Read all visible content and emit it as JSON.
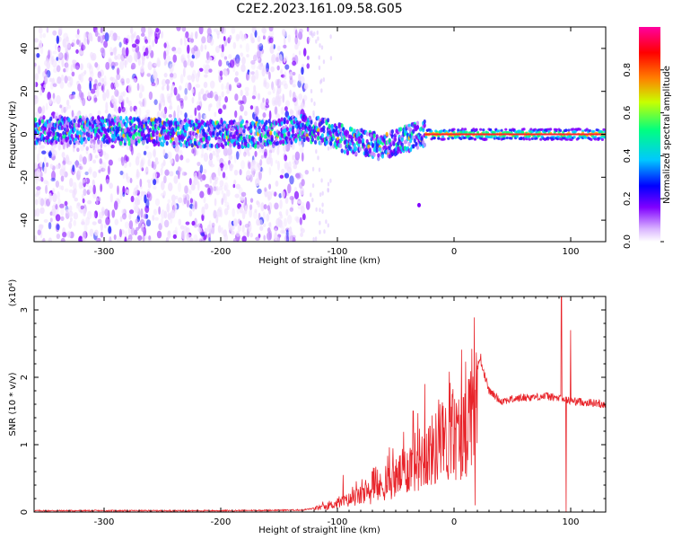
{
  "title": "C2E2.2023.161.09.58.G05",
  "chart_data": [
    {
      "type": "heatmap",
      "xlabel": "Height of straight line (km)",
      "ylabel": "Frequency (Hz)",
      "xlim": [
        -360,
        130
      ],
      "ylim": [
        -50,
        50
      ],
      "xticks": [
        -300,
        -200,
        -100,
        0,
        100
      ],
      "yticks": [
        -40,
        -20,
        0,
        20,
        40
      ],
      "colorbar": {
        "label": "Normalized spectral amplitude",
        "range": [
          0,
          1
        ],
        "ticks": [
          0,
          0.2,
          0.4,
          0.6,
          0.8
        ],
        "tick_labels": [
          "0.0",
          "0.2",
          "0.4",
          "0.6",
          "0.8"
        ],
        "colors": [
          "#ffffff",
          "#d9b3ff",
          "#8000ff",
          "#0000ff",
          "#00c8ff",
          "#00ff80",
          "#c8ff00",
          "#ff8000",
          "#ff0000",
          "#ff00a0"
        ]
      },
      "ridge": [
        {
          "x": -360,
          "f": 2
        },
        {
          "x": -300,
          "f": 2
        },
        {
          "x": -250,
          "f": 1
        },
        {
          "x": -200,
          "f": 0
        },
        {
          "x": -160,
          "f": 0
        },
        {
          "x": -130,
          "f": 3
        },
        {
          "x": -110,
          "f": 1
        },
        {
          "x": -90,
          "f": -3
        },
        {
          "x": -60,
          "f": -6
        },
        {
          "x": -45,
          "f": -3
        },
        {
          "x": -30,
          "f": 0
        },
        {
          "x": 0,
          "f": 0
        },
        {
          "x": 130,
          "f": 0
        }
      ],
      "noise_extent_km": -125,
      "grid": false
    },
    {
      "type": "line",
      "xlabel": "Height of straight line (km)",
      "ylabel": "SNR (10 * v/v)",
      "y_multiplier": "(x10⁴)",
      "xlim": [
        -360,
        130
      ],
      "ylim": [
        0,
        3.2
      ],
      "xticks": [
        -300,
        -200,
        -100,
        0,
        100
      ],
      "yticks": [
        0,
        1,
        2,
        3
      ],
      "color": "#e8242a",
      "envelope": [
        {
          "x": -360,
          "snr": 0.02
        },
        {
          "x": -200,
          "snr": 0.02
        },
        {
          "x": -130,
          "snr": 0.03
        },
        {
          "x": -110,
          "snr": 0.08
        },
        {
          "x": -90,
          "snr": 0.18
        },
        {
          "x": -70,
          "snr": 0.3
        },
        {
          "x": -50,
          "snr": 0.5
        },
        {
          "x": -30,
          "snr": 0.8
        },
        {
          "x": -10,
          "snr": 1.0
        },
        {
          "x": 10,
          "snr": 1.2
        },
        {
          "x": 22,
          "snr": 2.3
        },
        {
          "x": 30,
          "snr": 1.8
        },
        {
          "x": 40,
          "snr": 1.65
        },
        {
          "x": 60,
          "snr": 1.7
        },
        {
          "x": 80,
          "snr": 1.72
        },
        {
          "x": 100,
          "snr": 1.65
        },
        {
          "x": 130,
          "snr": 1.6
        }
      ],
      "spikes": [
        {
          "x": -95,
          "snr": 0.55
        },
        {
          "x": -70,
          "snr": 0.6
        },
        {
          "x": -35,
          "snr": 1.5
        },
        {
          "x": -25,
          "snr": 1.9
        },
        {
          "x": -12,
          "snr": 1.6
        },
        {
          "x": 8,
          "snr": 1.7
        },
        {
          "x": 23,
          "snr": 2.35
        },
        {
          "x": 18,
          "snr": 0.1
        },
        {
          "x": 92,
          "snr": 3.2
        },
        {
          "x": 96,
          "snr": 0.0
        },
        {
          "x": 100,
          "snr": 2.7
        }
      ],
      "grid": false
    }
  ]
}
